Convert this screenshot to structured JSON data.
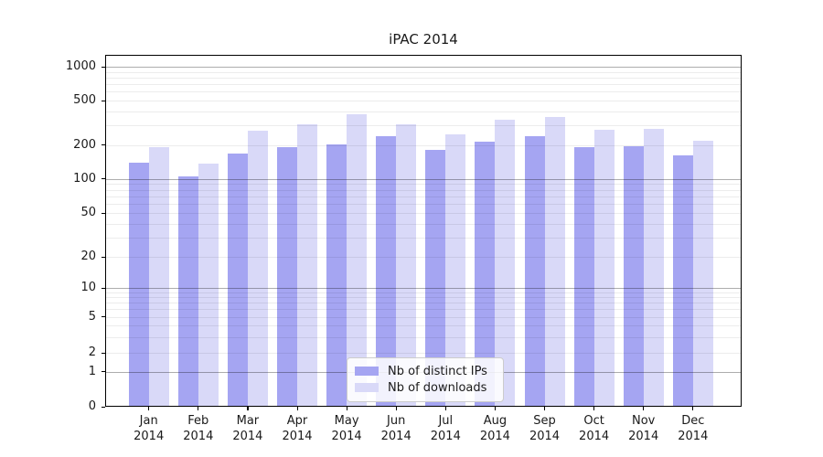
{
  "chart_data": {
    "type": "bar",
    "title": "iPAC 2014",
    "categories": [
      "Jan",
      "Feb",
      "Mar",
      "Apr",
      "May",
      "Jun",
      "Jul",
      "Aug",
      "Sep",
      "Oct",
      "Nov",
      "Dec"
    ],
    "category_year": "2014",
    "series": [
      {
        "name": "Nb of distinct IPs",
        "color": "#a5a5f2",
        "values": [
          138,
          105,
          168,
          191,
          201,
          238,
          182,
          214,
          240,
          191,
          195,
          161
        ]
      },
      {
        "name": "Nb of downloads",
        "color": "#d9d9f8",
        "values": [
          192,
          136,
          268,
          306,
          374,
          308,
          247,
          338,
          354,
          275,
          279,
          217
        ]
      }
    ],
    "xlabel": "",
    "ylabel": "",
    "yscale": "symlog",
    "yticks": [
      0,
      1,
      2,
      5,
      10,
      20,
      50,
      100,
      200,
      500,
      1000
    ],
    "ylim": [
      0,
      1270
    ],
    "grid": "both",
    "legend_position": "lower-center",
    "background_color": "#ffffff"
  }
}
